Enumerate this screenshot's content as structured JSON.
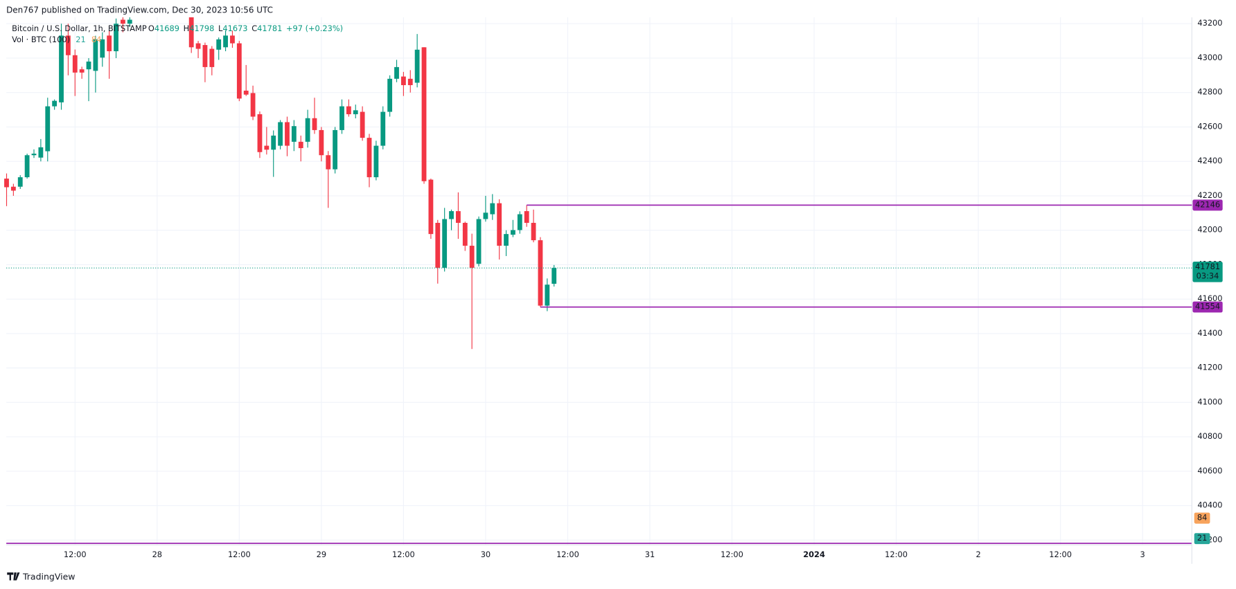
{
  "header": "Den767 published on TradingView.com, Dec 30, 2023 10:56 UTC",
  "footer": "TradingView",
  "chart_data": {
    "type": "candlestick",
    "title": "Bitcoin / U.S. Dollar, 1h, BITSTAMP",
    "legend": [
      {
        "key": "O",
        "value": 41689
      },
      {
        "key": "H",
        "value": 41798
      },
      {
        "key": "L",
        "value": 41673
      },
      {
        "key": "C",
        "value": 41781
      }
    ],
    "change": "+97 (+0.23%)",
    "volume": {
      "title": "Vol · BTC (100)",
      "last": 21,
      "ma": 84,
      "last_color": "#26a69a",
      "ma_color": "#f7a35c"
    },
    "up_color": "#089981",
    "down_color": "#f23645",
    "x": [
      2,
      3,
      4,
      5,
      6,
      7,
      8,
      9,
      10,
      11,
      12,
      13,
      14,
      15,
      16,
      17,
      18,
      19,
      20,
      29,
      30,
      31,
      32,
      33,
      34,
      35,
      36,
      37,
      38,
      39,
      40,
      41,
      42,
      43,
      44,
      45,
      46,
      47,
      48,
      49,
      50,
      51,
      52,
      53,
      54,
      55,
      56,
      57,
      58,
      59,
      60,
      61,
      62,
      63,
      64,
      65,
      66,
      67,
      68,
      69,
      70,
      71,
      72,
      73,
      74,
      75,
      76,
      77,
      78,
      79,
      80,
      81,
      82
    ],
    "open": [
      42300,
      42253,
      42253,
      42308,
      42436,
      42422,
      42459,
      42720,
      42743,
      43131,
      43017,
      42935,
      42935,
      42926,
      43003,
      43131,
      43040,
      43223,
      43200,
      43237,
      43086,
      43076,
      43054,
      43049,
      43063,
      43131,
      43086,
      42811,
      42797,
      42674,
      42491,
      42468,
      42491,
      42628,
      42514,
      42514,
      42514,
      42651,
      42582,
      42436,
      42354,
      42582,
      42720,
      42674,
      42688,
      42537,
      42308,
      42491,
      42688,
      42880,
      42893,
      42880,
      42857,
      43063,
      42294,
      42043,
      41782,
      42065,
      42111,
      42043,
      41910,
      41805,
      42065,
      42093,
      42157,
      41910,
      41974,
      42001,
      42111,
      42043,
      41942,
      41562,
      41689
    ],
    "high": [
      42330,
      42270,
      42320,
      42445,
      42470,
      42530,
      42770,
      42760,
      43200,
      43200,
      43050,
      42950,
      43000,
      43130,
      43150,
      43160,
      43230,
      43237,
      43237,
      43237,
      43100,
      43090,
      43070,
      43120,
      43160,
      43160,
      43100,
      42960,
      42840,
      42690,
      42600,
      42580,
      42640,
      42660,
      42640,
      42550,
      42700,
      42770,
      42600,
      42460,
      42600,
      42760,
      42760,
      42730,
      42720,
      42560,
      42520,
      42720,
      42900,
      42990,
      42920,
      42930,
      43140,
      43063,
      42300,
      42060,
      42130,
      42120,
      42220,
      42050,
      41980,
      42080,
      42200,
      42210,
      42180,
      42000,
      42060,
      42110,
      42146,
      42120,
      41960,
      41720,
      41798
    ],
    "low": [
      42140,
      42200,
      42240,
      42300,
      42420,
      42400,
      42400,
      42700,
      42700,
      42900,
      42780,
      42880,
      42750,
      42800,
      42950,
      42880,
      43000,
      43150,
      43180,
      43030,
      43000,
      42860,
      42900,
      42990,
      43040,
      43060,
      42750,
      42780,
      42640,
      42420,
      42440,
      42310,
      42470,
      42430,
      42460,
      42400,
      42480,
      42560,
      42400,
      42130,
      42330,
      42560,
      42660,
      42650,
      42520,
      42250,
      42290,
      42470,
      42660,
      42860,
      42780,
      42800,
      42830,
      42270,
      41950,
      41690,
      41760,
      42000,
      41950,
      41880,
      41310,
      41790,
      42050,
      42060,
      41830,
      41850,
      41960,
      41980,
      42020,
      41930,
      41554,
      41530,
      41673
    ],
    "close": [
      42250,
      42230,
      42308,
      42436,
      42445,
      42482,
      42720,
      42752,
      43131,
      43017,
      42916,
      42916,
      42980,
      43109,
      43109,
      43040,
      43200,
      43200,
      43223,
      43063,
      43054,
      42948,
      42948,
      43109,
      43131,
      43086,
      42765,
      42788,
      42660,
      42454,
      42468,
      42550,
      42628,
      42491,
      42605,
      42477,
      42651,
      42582,
      42436,
      42354,
      42582,
      42720,
      42674,
      42697,
      42537,
      42308,
      42491,
      42688,
      42880,
      42948,
      42843,
      42843,
      43049,
      42285,
      41978,
      41782,
      42065,
      42111,
      42043,
      41910,
      41782,
      42065,
      42102,
      42157,
      41910,
      41978,
      42001,
      42093,
      42043,
      41942,
      41562,
      41684,
      41781
    ],
    "xlim": [
      1.96,
      175.2
    ],
    "xticks": [
      {
        "value": 12,
        "label": "12:00"
      },
      {
        "value": 24,
        "label": "28"
      },
      {
        "value": 36,
        "label": "12:00"
      },
      {
        "value": 48,
        "label": "29"
      },
      {
        "value": 60,
        "label": "12:00"
      },
      {
        "value": 72,
        "label": "30"
      },
      {
        "value": 84,
        "label": "12:00"
      },
      {
        "value": 96,
        "label": "31"
      },
      {
        "value": 108,
        "label": "12:00"
      },
      {
        "value": 120,
        "label": "2024"
      },
      {
        "value": 132,
        "label": "12:00"
      },
      {
        "value": 144,
        "label": "2"
      },
      {
        "value": 156,
        "label": "12:00"
      },
      {
        "value": 168,
        "label": "3"
      }
    ],
    "ylim": [
      40172,
      43237
    ],
    "yticks": [
      40200,
      40400,
      40600,
      40800,
      41000,
      41200,
      41400,
      41600,
      41800,
      42000,
      42200,
      42400,
      42600,
      42800,
      43000,
      43200
    ],
    "grid": true,
    "hlines": [
      {
        "value": 42146,
        "x_start": 78,
        "color": "#9c27b0"
      },
      {
        "value": 41554,
        "x_start": 80,
        "color": "#9c27b0"
      }
    ],
    "last_price": {
      "value": 41781,
      "countdown": "03:34",
      "color": "#089981"
    }
  }
}
